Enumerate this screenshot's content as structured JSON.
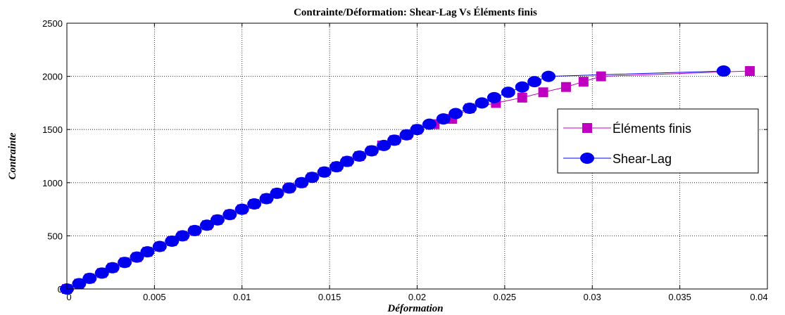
{
  "chart_data": {
    "type": "line",
    "title": "Contrainte/Déformation: Shear-Lag Vs Éléments finis",
    "xlabel": "Déformation",
    "ylabel": "Contrainte",
    "xlim": [
      0,
      0.04
    ],
    "ylim": [
      0,
      2500
    ],
    "xticks": [
      "0",
      "0.005",
      "0.01",
      "0.015",
      "0.02",
      "0.025",
      "0.03",
      "0.035",
      "0.04"
    ],
    "yticks": [
      "0",
      "500",
      "1000",
      "1500",
      "2000",
      "2500"
    ],
    "grid": true,
    "legend_position": "right",
    "colors": {
      "elements_finis": "#c000c0",
      "shear_lag": "#0000ee"
    },
    "series": [
      {
        "name": "Éléments finis",
        "marker": "square",
        "points": [
          [
            0,
            0
          ],
          [
            0.0007,
            50
          ],
          [
            0.0013,
            100
          ],
          [
            0.002,
            150
          ],
          [
            0.0026,
            200
          ],
          [
            0.0033,
            250
          ],
          [
            0.004,
            300
          ],
          [
            0.0046,
            350
          ],
          [
            0.0053,
            400
          ],
          [
            0.006,
            450
          ],
          [
            0.0066,
            500
          ],
          [
            0.0073,
            550
          ],
          [
            0.008,
            600
          ],
          [
            0.0086,
            650
          ],
          [
            0.0093,
            700
          ],
          [
            0.01,
            750
          ],
          [
            0.0107,
            800
          ],
          [
            0.0114,
            850
          ],
          [
            0.012,
            900
          ],
          [
            0.0127,
            950
          ],
          [
            0.0134,
            1000
          ],
          [
            0.014,
            1050
          ],
          [
            0.0147,
            1100
          ],
          [
            0.0154,
            1150
          ],
          [
            0.016,
            1200
          ],
          [
            0.0167,
            1250
          ],
          [
            0.0174,
            1300
          ],
          [
            0.018,
            1350
          ],
          [
            0.0187,
            1400
          ],
          [
            0.0194,
            1450
          ],
          [
            0.02,
            1500
          ],
          [
            0.021,
            1550
          ],
          [
            0.022,
            1600
          ],
          [
            0.023,
            1700
          ],
          [
            0.0245,
            1750
          ],
          [
            0.026,
            1800
          ],
          [
            0.0272,
            1850
          ],
          [
            0.0285,
            1900
          ],
          [
            0.0295,
            1950
          ],
          [
            0.0305,
            2000
          ],
          [
            0.039,
            2050
          ]
        ]
      },
      {
        "name": "Shear-Lag",
        "marker": "circle",
        "points": [
          [
            0,
            0
          ],
          [
            0.0007,
            50
          ],
          [
            0.0013,
            100
          ],
          [
            0.002,
            150
          ],
          [
            0.0026,
            200
          ],
          [
            0.0033,
            250
          ],
          [
            0.004,
            300
          ],
          [
            0.0046,
            350
          ],
          [
            0.0053,
            400
          ],
          [
            0.006,
            450
          ],
          [
            0.0066,
            500
          ],
          [
            0.0073,
            550
          ],
          [
            0.008,
            600
          ],
          [
            0.0086,
            650
          ],
          [
            0.0093,
            700
          ],
          [
            0.01,
            750
          ],
          [
            0.0107,
            800
          ],
          [
            0.0114,
            850
          ],
          [
            0.012,
            900
          ],
          [
            0.0127,
            950
          ],
          [
            0.0134,
            1000
          ],
          [
            0.014,
            1050
          ],
          [
            0.0147,
            1100
          ],
          [
            0.0154,
            1150
          ],
          [
            0.016,
            1200
          ],
          [
            0.0167,
            1250
          ],
          [
            0.0174,
            1300
          ],
          [
            0.0181,
            1350
          ],
          [
            0.0187,
            1400
          ],
          [
            0.0194,
            1450
          ],
          [
            0.02,
            1500
          ],
          [
            0.0207,
            1550
          ],
          [
            0.0215,
            1600
          ],
          [
            0.0222,
            1650
          ],
          [
            0.023,
            1700
          ],
          [
            0.0237,
            1750
          ],
          [
            0.0244,
            1800
          ],
          [
            0.0252,
            1850
          ],
          [
            0.026,
            1900
          ],
          [
            0.0267,
            1950
          ],
          [
            0.0275,
            2000
          ],
          [
            0.0375,
            2050
          ]
        ]
      }
    ]
  }
}
